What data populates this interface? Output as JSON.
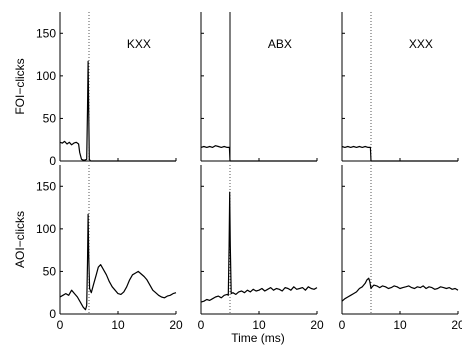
{
  "chart_data": {
    "type": "line",
    "title": "",
    "x_axis": {
      "label": "Time (ms)",
      "lim": [
        0,
        20
      ],
      "ticks": [
        0,
        10,
        20
      ],
      "tick_labels": [
        "0",
        "10",
        "20",
        "0",
        "10",
        "20",
        "0",
        "10",
        "20"
      ]
    },
    "y_axis": {
      "lim": [
        0,
        175
      ],
      "ticks": [
        0,
        50,
        100,
        150
      ],
      "tick_labels": [
        "0",
        "50",
        "100",
        "150",
        "0",
        "50",
        "100",
        "150"
      ]
    },
    "marker_x": 5,
    "grid": false,
    "rows": [
      {
        "ylabel": "FOI−clicks"
      },
      {
        "ylabel": "AOI−clicks"
      }
    ],
    "columns": [
      {
        "label": "KXX"
      },
      {
        "label": "ABX"
      },
      {
        "label": "XXX"
      }
    ],
    "panels": [
      {
        "row": 0,
        "col": 0,
        "marker_style": "dotted",
        "x": [
          0,
          0.4,
          0.8,
          1.2,
          1.6,
          2.0,
          2.4,
          2.8,
          3.2,
          3.4,
          3.7,
          4.0,
          4.3,
          4.6,
          4.75,
          4.85,
          4.95,
          5.05,
          5.15,
          5.3,
          6,
          10,
          15,
          20
        ],
        "y": [
          22,
          21,
          23,
          20,
          22,
          19,
          21,
          22,
          20,
          10,
          2,
          1,
          1,
          2,
          60,
          117,
          60,
          2,
          1,
          0,
          0,
          0,
          0,
          0
        ]
      },
      {
        "row": 0,
        "col": 1,
        "marker_style": "solid",
        "x": [
          0,
          0.5,
          1,
          1.5,
          2,
          2.5,
          3,
          3.5,
          4,
          4.5,
          4.9,
          5.0,
          5.1,
          6,
          10,
          15,
          20
        ],
        "y": [
          16,
          17,
          16,
          17,
          16,
          18,
          17,
          16,
          17,
          16,
          16,
          0,
          0,
          0,
          0,
          0,
          0
        ]
      },
      {
        "row": 0,
        "col": 2,
        "marker_style": "dotted",
        "x": [
          0,
          0.5,
          1,
          1.5,
          2,
          2.5,
          3,
          3.5,
          4,
          4.5,
          4.9,
          5.0,
          5.1,
          6,
          10,
          15,
          20
        ],
        "y": [
          17,
          16,
          17,
          16,
          17,
          16,
          17,
          16,
          17,
          16,
          16,
          0,
          0,
          0,
          0,
          0,
          0
        ]
      },
      {
        "row": 1,
        "col": 0,
        "marker_style": "dotted",
        "x": [
          0,
          0.5,
          1,
          1.5,
          2,
          2.5,
          3,
          3.5,
          4,
          4.4,
          4.6,
          4.75,
          4.85,
          4.95,
          5.1,
          5.4,
          5.8,
          6.2,
          6.6,
          7,
          7.5,
          8,
          8.5,
          9,
          9.5,
          10,
          10.5,
          11,
          11.5,
          12,
          12.5,
          13,
          13.5,
          14,
          14.5,
          15,
          15.5,
          16,
          16.5,
          17,
          17.5,
          18,
          18.5,
          19,
          19.5,
          20
        ],
        "y": [
          20,
          22,
          24,
          22,
          28,
          24,
          20,
          14,
          8,
          5,
          10,
          60,
          117,
          70,
          30,
          25,
          35,
          45,
          55,
          58,
          52,
          46,
          38,
          32,
          28,
          24,
          23,
          26,
          32,
          40,
          46,
          48,
          50,
          47,
          44,
          40,
          34,
          28,
          25,
          22,
          20,
          19,
          21,
          22,
          24,
          25
        ]
      },
      {
        "row": 1,
        "col": 1,
        "marker_style": "dotted",
        "x": [
          0,
          0.5,
          1,
          1.5,
          2,
          2.5,
          3,
          3.5,
          4,
          4.5,
          4.7,
          4.85,
          4.95,
          5.05,
          5.2,
          5.5,
          6,
          6.5,
          7,
          7.5,
          8,
          8.5,
          9,
          9.5,
          10,
          10.5,
          11,
          11.5,
          12,
          12.5,
          13,
          13.5,
          14,
          14.5,
          15,
          15.5,
          16,
          16.5,
          17,
          17.5,
          18,
          18.5,
          19,
          19.5,
          20
        ],
        "y": [
          14,
          15,
          17,
          16,
          18,
          20,
          21,
          19,
          22,
          23,
          22,
          80,
          143,
          80,
          24,
          25,
          23,
          26,
          27,
          25,
          28,
          26,
          29,
          27,
          28,
          30,
          27,
          29,
          31,
          28,
          30,
          29,
          27,
          31,
          30,
          28,
          32,
          29,
          30,
          31,
          28,
          32,
          30,
          29,
          31
        ]
      },
      {
        "row": 1,
        "col": 2,
        "marker_style": "dotted",
        "x": [
          0,
          0.5,
          1,
          1.5,
          2,
          2.5,
          3,
          3.5,
          4,
          4.3,
          4.6,
          4.8,
          5.0,
          5.2,
          5.5,
          6,
          6.5,
          7,
          7.5,
          8,
          8.5,
          9,
          9.5,
          10,
          10.5,
          11,
          11.5,
          12,
          12.5,
          13,
          13.5,
          14,
          14.5,
          15,
          15.5,
          16,
          16.5,
          17,
          17.5,
          18,
          18.5,
          19,
          19.5,
          20
        ],
        "y": [
          15,
          18,
          20,
          22,
          24,
          26,
          30,
          32,
          36,
          40,
          42,
          38,
          30,
          32,
          34,
          33,
          31,
          33,
          32,
          30,
          31,
          33,
          32,
          30,
          31,
          32,
          33,
          31,
          30,
          32,
          31,
          33,
          30,
          32,
          31,
          29,
          30,
          32,
          31,
          30,
          31,
          29,
          30,
          28
        ]
      }
    ]
  }
}
